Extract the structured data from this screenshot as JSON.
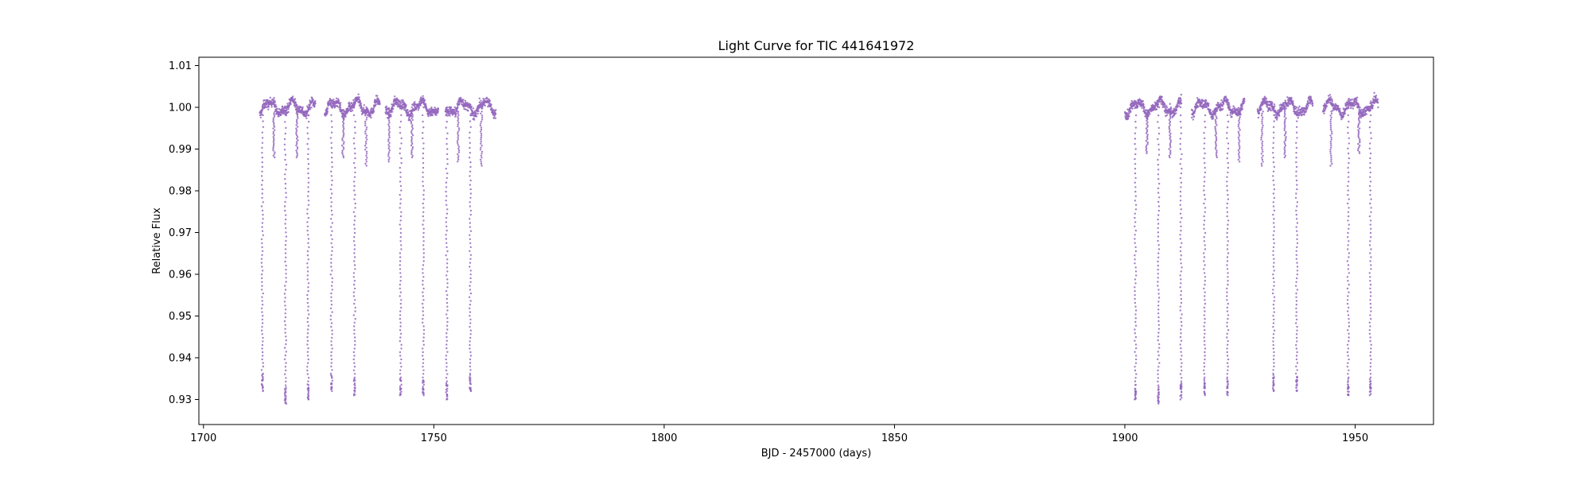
{
  "chart_data": {
    "type": "scatter",
    "title": "Light Curve for TIC 441641972",
    "xlabel": "BJD - 2457000 (days)",
    "ylabel": "Relative Flux",
    "xlim": [
      1699,
      1967
    ],
    "ylim": [
      0.924,
      1.012
    ],
    "xticks": [
      1700,
      1750,
      1800,
      1850,
      1900,
      1950
    ],
    "yticks": [
      0.93,
      0.94,
      0.95,
      0.96,
      0.97,
      0.98,
      0.99,
      1.0,
      1.01
    ],
    "ytick_labels": [
      "0.93",
      "0.94",
      "0.95",
      "0.96",
      "0.97",
      "0.98",
      "0.99",
      "1.00",
      "1.01"
    ],
    "grid": false,
    "marker_color": "#9467bd",
    "baseline": 1.0,
    "segments": [
      [
        1712.2,
        1724.3
      ],
      [
        1726.3,
        1738.3
      ],
      [
        1739.5,
        1751.0
      ],
      [
        1752.5,
        1763.5
      ],
      [
        1900.0,
        1912.3
      ],
      [
        1914.5,
        1926.0
      ],
      [
        1928.8,
        1940.8
      ],
      [
        1943.0,
        1955.0
      ]
    ],
    "primary_eclipses": [
      {
        "x": 1712.8,
        "min": 0.932
      },
      {
        "x": 1717.8,
        "min": 0.929
      },
      {
        "x": 1722.7,
        "min": 0.93
      },
      {
        "x": 1727.8,
        "min": 0.932
      },
      {
        "x": 1732.8,
        "min": 0.931
      },
      {
        "x": 1742.8,
        "min": 0.931
      },
      {
        "x": 1747.7,
        "min": 0.931
      },
      {
        "x": 1752.8,
        "min": 0.93
      },
      {
        "x": 1757.9,
        "min": 0.932
      },
      {
        "x": 1902.3,
        "min": 0.93
      },
      {
        "x": 1907.3,
        "min": 0.929
      },
      {
        "x": 1912.2,
        "min": 0.93
      },
      {
        "x": 1917.3,
        "min": 0.931
      },
      {
        "x": 1922.3,
        "min": 0.931
      },
      {
        "x": 1932.3,
        "min": 0.932
      },
      {
        "x": 1937.3,
        "min": 0.932
      },
      {
        "x": 1948.5,
        "min": 0.931
      },
      {
        "x": 1953.3,
        "min": 0.931
      }
    ],
    "secondary_eclipses": [
      {
        "x": 1715.3,
        "min": 0.988
      },
      {
        "x": 1720.3,
        "min": 0.988
      },
      {
        "x": 1730.3,
        "min": 0.988
      },
      {
        "x": 1735.3,
        "min": 0.986
      },
      {
        "x": 1740.3,
        "min": 0.987
      },
      {
        "x": 1745.3,
        "min": 0.988
      },
      {
        "x": 1755.3,
        "min": 0.987
      },
      {
        "x": 1760.3,
        "min": 0.986
      },
      {
        "x": 1904.8,
        "min": 0.989
      },
      {
        "x": 1909.8,
        "min": 0.988
      },
      {
        "x": 1919.8,
        "min": 0.988
      },
      {
        "x": 1924.8,
        "min": 0.987
      },
      {
        "x": 1929.8,
        "min": 0.986
      },
      {
        "x": 1934.8,
        "min": 0.988
      },
      {
        "x": 1944.8,
        "min": 0.986
      },
      {
        "x": 1950.8,
        "min": 0.989
      }
    ]
  }
}
